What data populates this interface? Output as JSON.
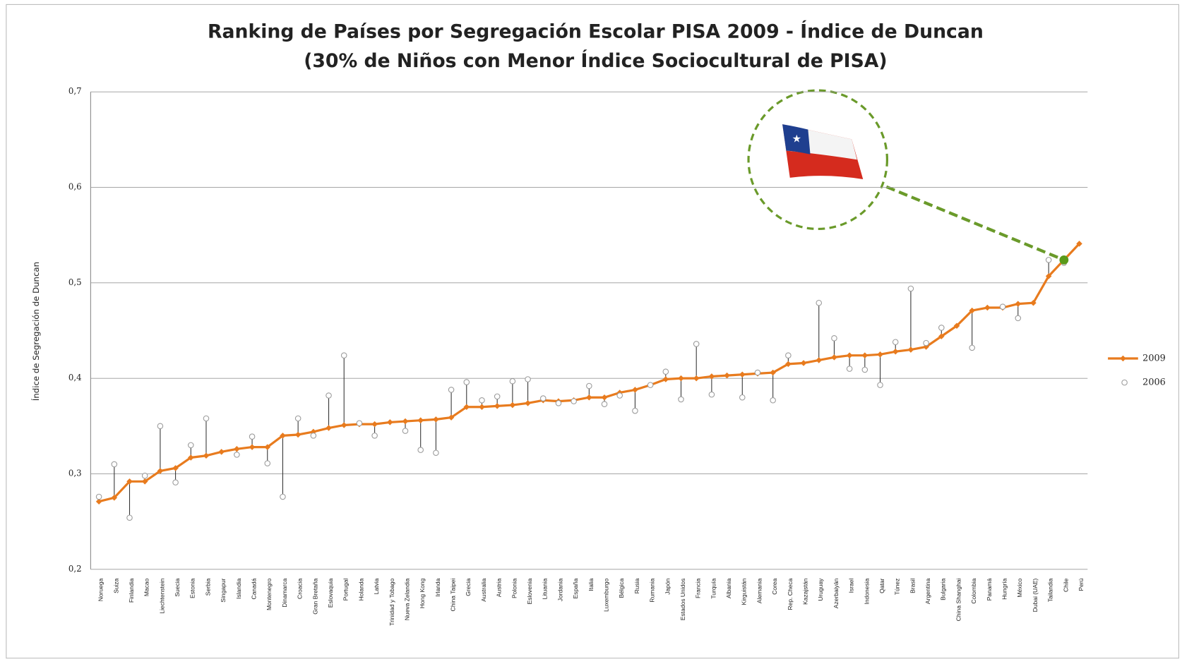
{
  "chart_data": {
    "type": "line",
    "title": "Ranking de Países por Segregación Escolar PISA 2009 - Índice de Duncan",
    "subtitle": "(30% de Niños con Menor Índice Sociocultural de PISA)",
    "y_label": "Índice de Segregación de Duncan",
    "categories": [
      "Noruega",
      "Suiza",
      "Finlandia",
      "Macao",
      "Liechtenstein",
      "Suecia",
      "Estonia",
      "Serbia",
      "Singapur",
      "Islandia",
      "Canadá",
      "Montenegro",
      "Dinamarca",
      "Croacia",
      "Gran Bretaña",
      "Eslovaquia",
      "Portugal",
      "Holanda",
      "Latvia",
      "Trinidad y Tobago",
      "Nueva Zelandia",
      "Hong Kong",
      "Irlanda",
      "China Taipei",
      "Grecia",
      "Australia",
      "Austria",
      "Polonia",
      "Eslovenia",
      "Lituania",
      "Jordania",
      "España",
      "Italia",
      "Luxemburgo",
      "Bélgica",
      "Rusia",
      "Rumania",
      "Japón",
      "Estados Unidos",
      "Francia",
      "Turquía",
      "Albania",
      "Kirguistán",
      "Alemania",
      "Corea",
      "Rep. Checa",
      "Kazajstán",
      "Uruguay",
      "Azerbaiyán",
      "Israel",
      "Indonesia",
      "Qatar",
      "Túnez",
      "Brasil",
      "Argentina",
      "Bulgaria",
      "China Shanghai",
      "Colombia",
      "Panamá",
      "Hungría",
      "México",
      "Dubai (UAE)",
      "Tailandia",
      "Chile",
      "Perú"
    ],
    "series": [
      {
        "name": "2009",
        "color": "#e87b1e",
        "values": [
          0.271,
          0.275,
          0.292,
          0.292,
          0.303,
          0.306,
          0.317,
          0.319,
          0.323,
          0.326,
          0.328,
          0.328,
          0.34,
          0.341,
          0.344,
          0.348,
          0.351,
          0.352,
          0.352,
          0.354,
          0.355,
          0.356,
          0.357,
          0.359,
          0.37,
          0.37,
          0.371,
          0.372,
          0.374,
          0.377,
          0.376,
          0.377,
          0.38,
          0.38,
          0.385,
          0.388,
          0.393,
          0.399,
          0.4,
          0.4,
          0.402,
          0.403,
          0.404,
          0.405,
          0.406,
          0.415,
          0.416,
          0.419,
          0.422,
          0.424,
          0.424,
          0.425,
          0.428,
          0.43,
          0.433,
          0.444,
          0.455,
          0.471,
          0.474,
          0.474,
          0.478,
          0.479,
          0.507,
          0.524,
          0.541
        ]
      },
      {
        "name": "2006",
        "color": "#9a9a9a",
        "values": [
          0.276,
          0.31,
          0.254,
          0.298,
          0.35,
          0.291,
          0.33,
          0.358,
          null,
          0.32,
          0.339,
          0.311,
          0.276,
          0.358,
          0.34,
          0.382,
          0.424,
          0.353,
          0.34,
          null,
          0.345,
          0.325,
          0.322,
          0.388,
          0.396,
          0.377,
          0.381,
          0.397,
          0.399,
          0.379,
          0.374,
          0.376,
          0.392,
          0.373,
          0.382,
          0.366,
          0.393,
          0.407,
          0.378,
          0.436,
          0.383,
          null,
          0.38,
          0.406,
          0.377,
          0.424,
          null,
          0.479,
          0.442,
          0.41,
          0.409,
          0.393,
          0.438,
          0.494,
          0.437,
          0.453,
          null,
          0.432,
          null,
          0.475,
          0.463,
          null,
          0.524,
          0.521,
          null
        ]
      }
    ],
    "ylim": [
      0.2,
      0.7
    ],
    "yticks": [
      {
        "value": 0.2,
        "label": "0,2"
      },
      {
        "value": 0.3,
        "label": "0,3"
      },
      {
        "value": 0.4,
        "label": "0,4"
      },
      {
        "value": 0.5,
        "label": "0,5"
      },
      {
        "value": 0.6,
        "label": "0,6"
      },
      {
        "value": 0.7,
        "label": "0,7"
      }
    ],
    "grid": true,
    "legend": "right"
  }
}
